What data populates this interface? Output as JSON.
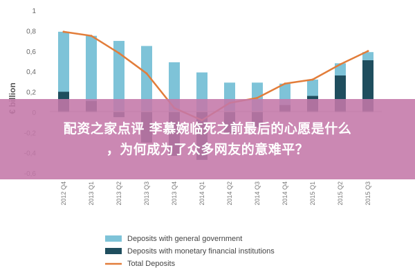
{
  "overlay": {
    "line1": "配资之家点评 李慕婉临死之前最后的心愿是什么",
    "line2": "，为何成为了众多网友的意难平？"
  },
  "chart_data": {
    "type": "bar",
    "title": "",
    "ylabel": "€ billion",
    "xlabel": "",
    "ylim": [
      -0.6,
      1.0
    ],
    "yticks": [
      -0.6,
      -0.4,
      -0.2,
      0,
      0.2,
      0.4,
      0.6,
      0.8,
      1
    ],
    "ytick_labels": [
      "-0,6",
      "-0,4",
      "-0,2",
      "0",
      "0,2",
      "0,4",
      "0,6",
      "0,8",
      "1"
    ],
    "grid": false,
    "legend_position": "bottom",
    "categories": [
      "2012 Q4",
      "2013 Q1",
      "2013 Q2",
      "2013 Q3",
      "2013 Q4",
      "2014 Q1",
      "2014 Q2",
      "2014 Q3",
      "2014 Q4",
      "2015 Q1",
      "2015 Q2",
      "2015 Q3"
    ],
    "series": [
      {
        "name": "Deposits with general government",
        "kind": "bar",
        "color": "#7ec3d8",
        "values": [
          0.59,
          0.64,
          0.7,
          0.65,
          0.49,
          0.39,
          0.29,
          0.29,
          0.21,
          0.16,
          0.12,
          0.08
        ]
      },
      {
        "name": "Deposits with monetary financial institutions",
        "kind": "bar",
        "color": "#1f4e5e",
        "values": [
          0.2,
          0.11,
          -0.05,
          -0.3,
          -0.43,
          -0.47,
          -0.21,
          -0.15,
          0.07,
          0.16,
          0.36,
          0.51
        ]
      },
      {
        "name": "Total Deposits",
        "kind": "line",
        "color": "#e27d3a",
        "values": [
          0.79,
          0.75,
          0.58,
          0.38,
          0.04,
          -0.08,
          0.09,
          0.14,
          0.28,
          0.32,
          0.47,
          0.6
        ]
      }
    ]
  }
}
